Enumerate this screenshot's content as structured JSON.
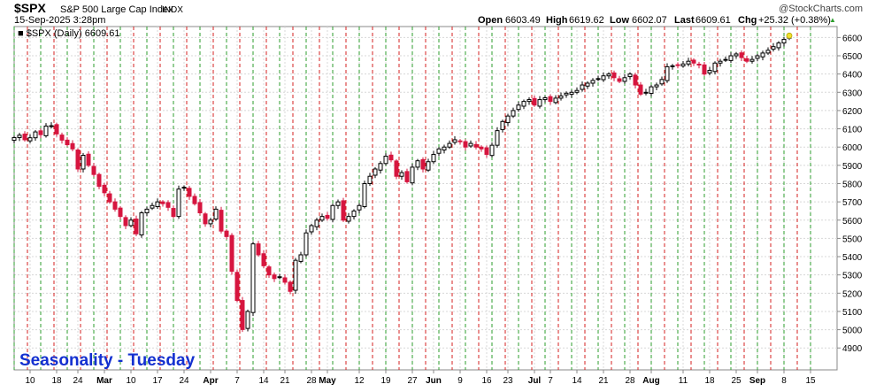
{
  "header": {
    "symbol": "$SPX",
    "name": "S&P 500 Large Cap Index",
    "exchange": "INDX",
    "datetime": "15-Sep-2025 3:28pm",
    "watermark": "@StockCharts.com",
    "legend": "■ $SPX (Daily) 6609.61",
    "open_label": "Open",
    "open": "6603.49",
    "high_label": "High",
    "high": "6619.62",
    "low_label": "Low",
    "low": "6602.07",
    "last_label": "Last",
    "last": "6609.61",
    "chg_label": "Chg",
    "chg": "+25.32 (+0.38%)",
    "up_arrow": "▲"
  },
  "annotation": "Seasonality - Tuesday",
  "colors": {
    "up": "#000000",
    "down": "#d6153f",
    "tuesday_line": "#2e9e2e",
    "other_line": "#d62020",
    "annotation": "#1330d0",
    "grid": "#d8d8d8",
    "last_marker": "#f0e030"
  },
  "chart_data": {
    "type": "candlestick",
    "title": "$SPX S&P 500 Large Cap Index INDX",
    "series_name": "$SPX (Daily)",
    "ylim": [
      4780,
      6660
    ],
    "y_ticks": [
      4900,
      5000,
      5100,
      5200,
      5300,
      5400,
      5500,
      5600,
      5700,
      5800,
      5900,
      6000,
      6100,
      6200,
      6300,
      6400,
      6500,
      6600
    ],
    "x_tick_labels": [
      {
        "i": 3,
        "label": "10",
        "bold": false
      },
      {
        "i": 8,
        "label": "18",
        "bold": false
      },
      {
        "i": 12,
        "label": "24",
        "bold": false
      },
      {
        "i": 17,
        "label": "Mar",
        "bold": true
      },
      {
        "i": 22,
        "label": "10",
        "bold": false
      },
      {
        "i": 27,
        "label": "17",
        "bold": false
      },
      {
        "i": 32,
        "label": "24",
        "bold": false
      },
      {
        "i": 37,
        "label": "Apr",
        "bold": true
      },
      {
        "i": 42,
        "label": "7",
        "bold": false
      },
      {
        "i": 47,
        "label": "14",
        "bold": false
      },
      {
        "i": 51,
        "label": "21",
        "bold": false
      },
      {
        "i": 56,
        "label": "28",
        "bold": false
      },
      {
        "i": 59,
        "label": "May",
        "bold": true
      },
      {
        "i": 65,
        "label": "12",
        "bold": false
      },
      {
        "i": 70,
        "label": "19",
        "bold": false
      },
      {
        "i": 75,
        "label": "27",
        "bold": false
      },
      {
        "i": 79,
        "label": "Jun",
        "bold": true
      },
      {
        "i": 84,
        "label": "9",
        "bold": false
      },
      {
        "i": 89,
        "label": "16",
        "bold": false
      },
      {
        "i": 93,
        "label": "23",
        "bold": false
      },
      {
        "i": 98,
        "label": "Jul",
        "bold": true
      },
      {
        "i": 101,
        "label": "7",
        "bold": false
      },
      {
        "i": 106,
        "label": "14",
        "bold": false
      },
      {
        "i": 111,
        "label": "21",
        "bold": false
      },
      {
        "i": 116,
        "label": "28",
        "bold": false
      },
      {
        "i": 120,
        "label": "Aug",
        "bold": true
      },
      {
        "i": 126,
        "label": "11",
        "bold": false
      },
      {
        "i": 131,
        "label": "18",
        "bold": false
      },
      {
        "i": 136,
        "label": "25",
        "bold": false
      },
      {
        "i": 140,
        "label": "Sep",
        "bold": true
      },
      {
        "i": 145,
        "label": "8",
        "bold": false
      },
      {
        "i": 150,
        "label": "15",
        "bold": false
      }
    ],
    "tuesday_lines": [
      0,
      5,
      10,
      15,
      20,
      25,
      30,
      35,
      40,
      45,
      50,
      55,
      60,
      65,
      70,
      75,
      80,
      85,
      90,
      95,
      100,
      105,
      110,
      115,
      120,
      125,
      130,
      135,
      140,
      145,
      150
    ],
    "other_lines": [
      2.5,
      7.5,
      12.5,
      17.5,
      22.5,
      27.5,
      32.5,
      37.5,
      42.5,
      47.5,
      52.5,
      57.5,
      62.5,
      67.5,
      72.5,
      77.5,
      82.5,
      87.5,
      92.5,
      97.5,
      102.5,
      107.5,
      112.5,
      117.5,
      122.5,
      127.5,
      132.5,
      137.5,
      142.5,
      147.5
    ],
    "closes": [
      6052,
      6065,
      6040,
      6051,
      6083,
      6068,
      6115,
      6117,
      6072,
      6038,
      6013,
      5990,
      5880,
      5955,
      5900,
      5850,
      5785,
      5750,
      5700,
      5660,
      5620,
      5570,
      5600,
      5525,
      5640,
      5660,
      5680,
      5700,
      5690,
      5670,
      5620,
      5770,
      5780,
      5730,
      5690,
      5640,
      5580,
      5600,
      5660,
      5540,
      5510,
      5320,
      5160,
      5001,
      5100,
      5470,
      5410,
      5350,
      5300,
      5280,
      5290,
      5260,
      5210,
      5380,
      5410,
      5530,
      5570,
      5600,
      5620,
      5610,
      5680,
      5700,
      5600,
      5620,
      5650,
      5680,
      5800,
      5840,
      5880,
      5910,
      5950,
      5930,
      5840,
      5860,
      5810,
      5890,
      5925,
      5880,
      5920,
      5960,
      5990,
      6000,
      6020,
      6040,
      6030,
      6000,
      6020,
      6000,
      5990,
      5960,
      6010,
      6090,
      6140,
      6170,
      6200,
      6230,
      6250,
      6260,
      6230,
      6260,
      6270,
      6250,
      6268,
      6280,
      6295,
      6300,
      6310,
      6340,
      6350,
      6365,
      6375,
      6390,
      6400,
      6380,
      6360,
      6380,
      6400,
      6340,
      6290,
      6300,
      6330,
      6340,
      6370,
      6440,
      6445,
      6450,
      6455,
      6470,
      6460,
      6450,
      6400,
      6420,
      6460,
      6470,
      6480,
      6500,
      6510,
      6490,
      6470,
      6480,
      6500,
      6515,
      6530,
      6550,
      6570,
      6590,
      6610
    ]
  }
}
